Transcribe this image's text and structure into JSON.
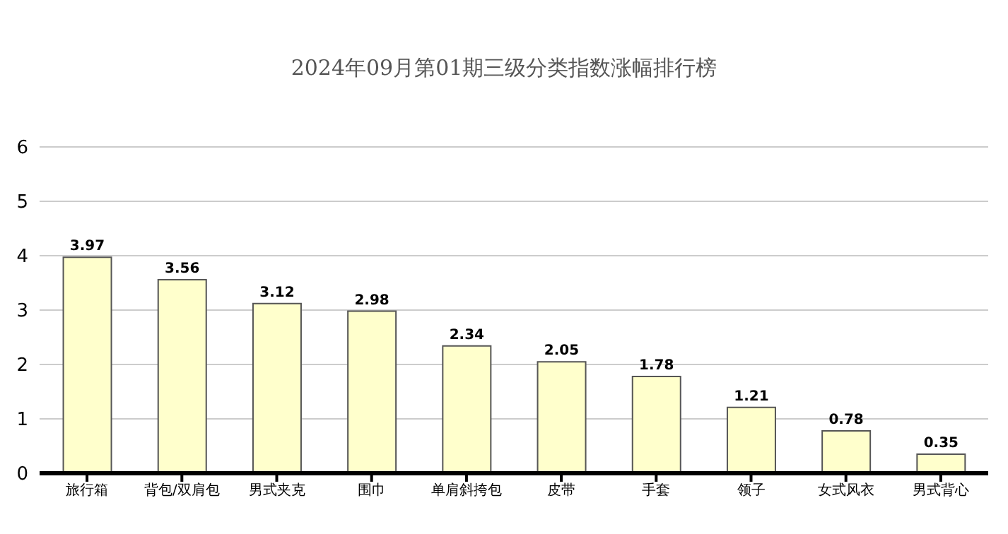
{
  "chart_data": {
    "type": "bar",
    "title": "2024年09月第01期三级分类指数涨幅排行榜",
    "categories": [
      "旅行箱",
      "背包/双肩包",
      "男式夹克",
      "围巾",
      "单肩斜挎包",
      "皮带",
      "手套",
      "领子",
      "女式风衣",
      "男式背心"
    ],
    "values": [
      3.97,
      3.56,
      3.12,
      2.98,
      2.34,
      2.05,
      1.78,
      1.21,
      0.78,
      0.35
    ],
    "color": "#ffffcc",
    "ylim": [
      0,
      6
    ],
    "yticks": [
      0,
      1,
      2,
      3,
      4,
      5,
      6
    ],
    "grid": "y",
    "data_labels": true
  }
}
